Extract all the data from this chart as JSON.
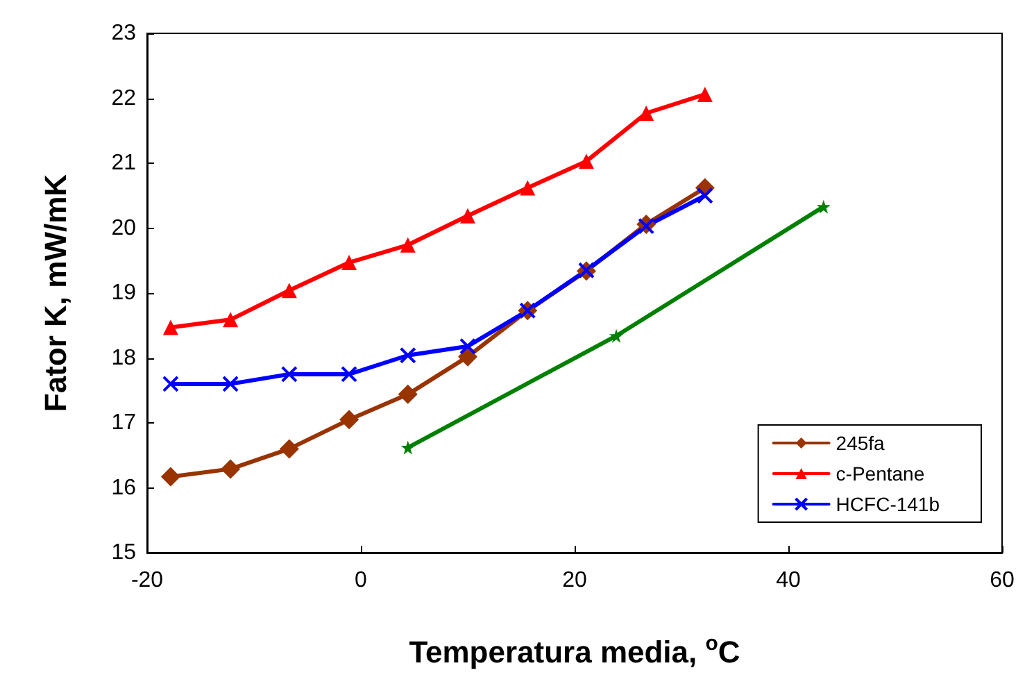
{
  "chart_data": {
    "type": "line",
    "xlabel": "Temperatura media, $^{o}$C",
    "ylabel": "Fator K, mW/mK",
    "xlim": [
      -20,
      60
    ],
    "xticks": [
      -20,
      0,
      20,
      40,
      60
    ],
    "ylim": [
      15,
      23
    ],
    "yticks": [
      15,
      16,
      17,
      18,
      19,
      20,
      21,
      22,
      23
    ],
    "grid": false,
    "legend": "bottom right",
    "line_style": "solid",
    "series": [
      {
        "name": "245fa",
        "color": "#993300",
        "marker": "diamond",
        "x": [
          -17.8,
          -12.2,
          -6.7,
          -1.1,
          4.4,
          10,
          15.6,
          21.1,
          26.7,
          32.2
        ],
        "values": [
          16.17,
          16.29,
          16.6,
          17.05,
          17.44,
          18.02,
          18.73,
          19.34,
          20.06,
          20.62
        ]
      },
      {
        "name": "c-Pentane",
        "color": "#ff0000",
        "marker": "triangle",
        "x": [
          -17.8,
          -12.2,
          -6.7,
          -1.1,
          4.4,
          10,
          15.6,
          21.1,
          26.7,
          32.2
        ],
        "values": [
          18.47,
          18.59,
          19.04,
          19.47,
          19.74,
          20.19,
          20.62,
          21.03,
          21.77,
          22.06
        ]
      },
      {
        "name": "HCFC-141b",
        "color": "#0000ff",
        "marker": "cross",
        "x": [
          -17.8,
          -12.2,
          -6.7,
          -1.1,
          4.4,
          10,
          15.6,
          21.1,
          26.7,
          32.2
        ],
        "values": [
          17.6,
          17.6,
          17.75,
          17.75,
          18.04,
          18.18,
          18.73,
          19.35,
          20.03,
          20.5
        ]
      },
      {
        "color": "#008000",
        "marker": "star",
        "x": [
          4.4,
          23.9,
          43.3
        ],
        "values": [
          16.62,
          18.34,
          20.33
        ]
      }
    ]
  }
}
